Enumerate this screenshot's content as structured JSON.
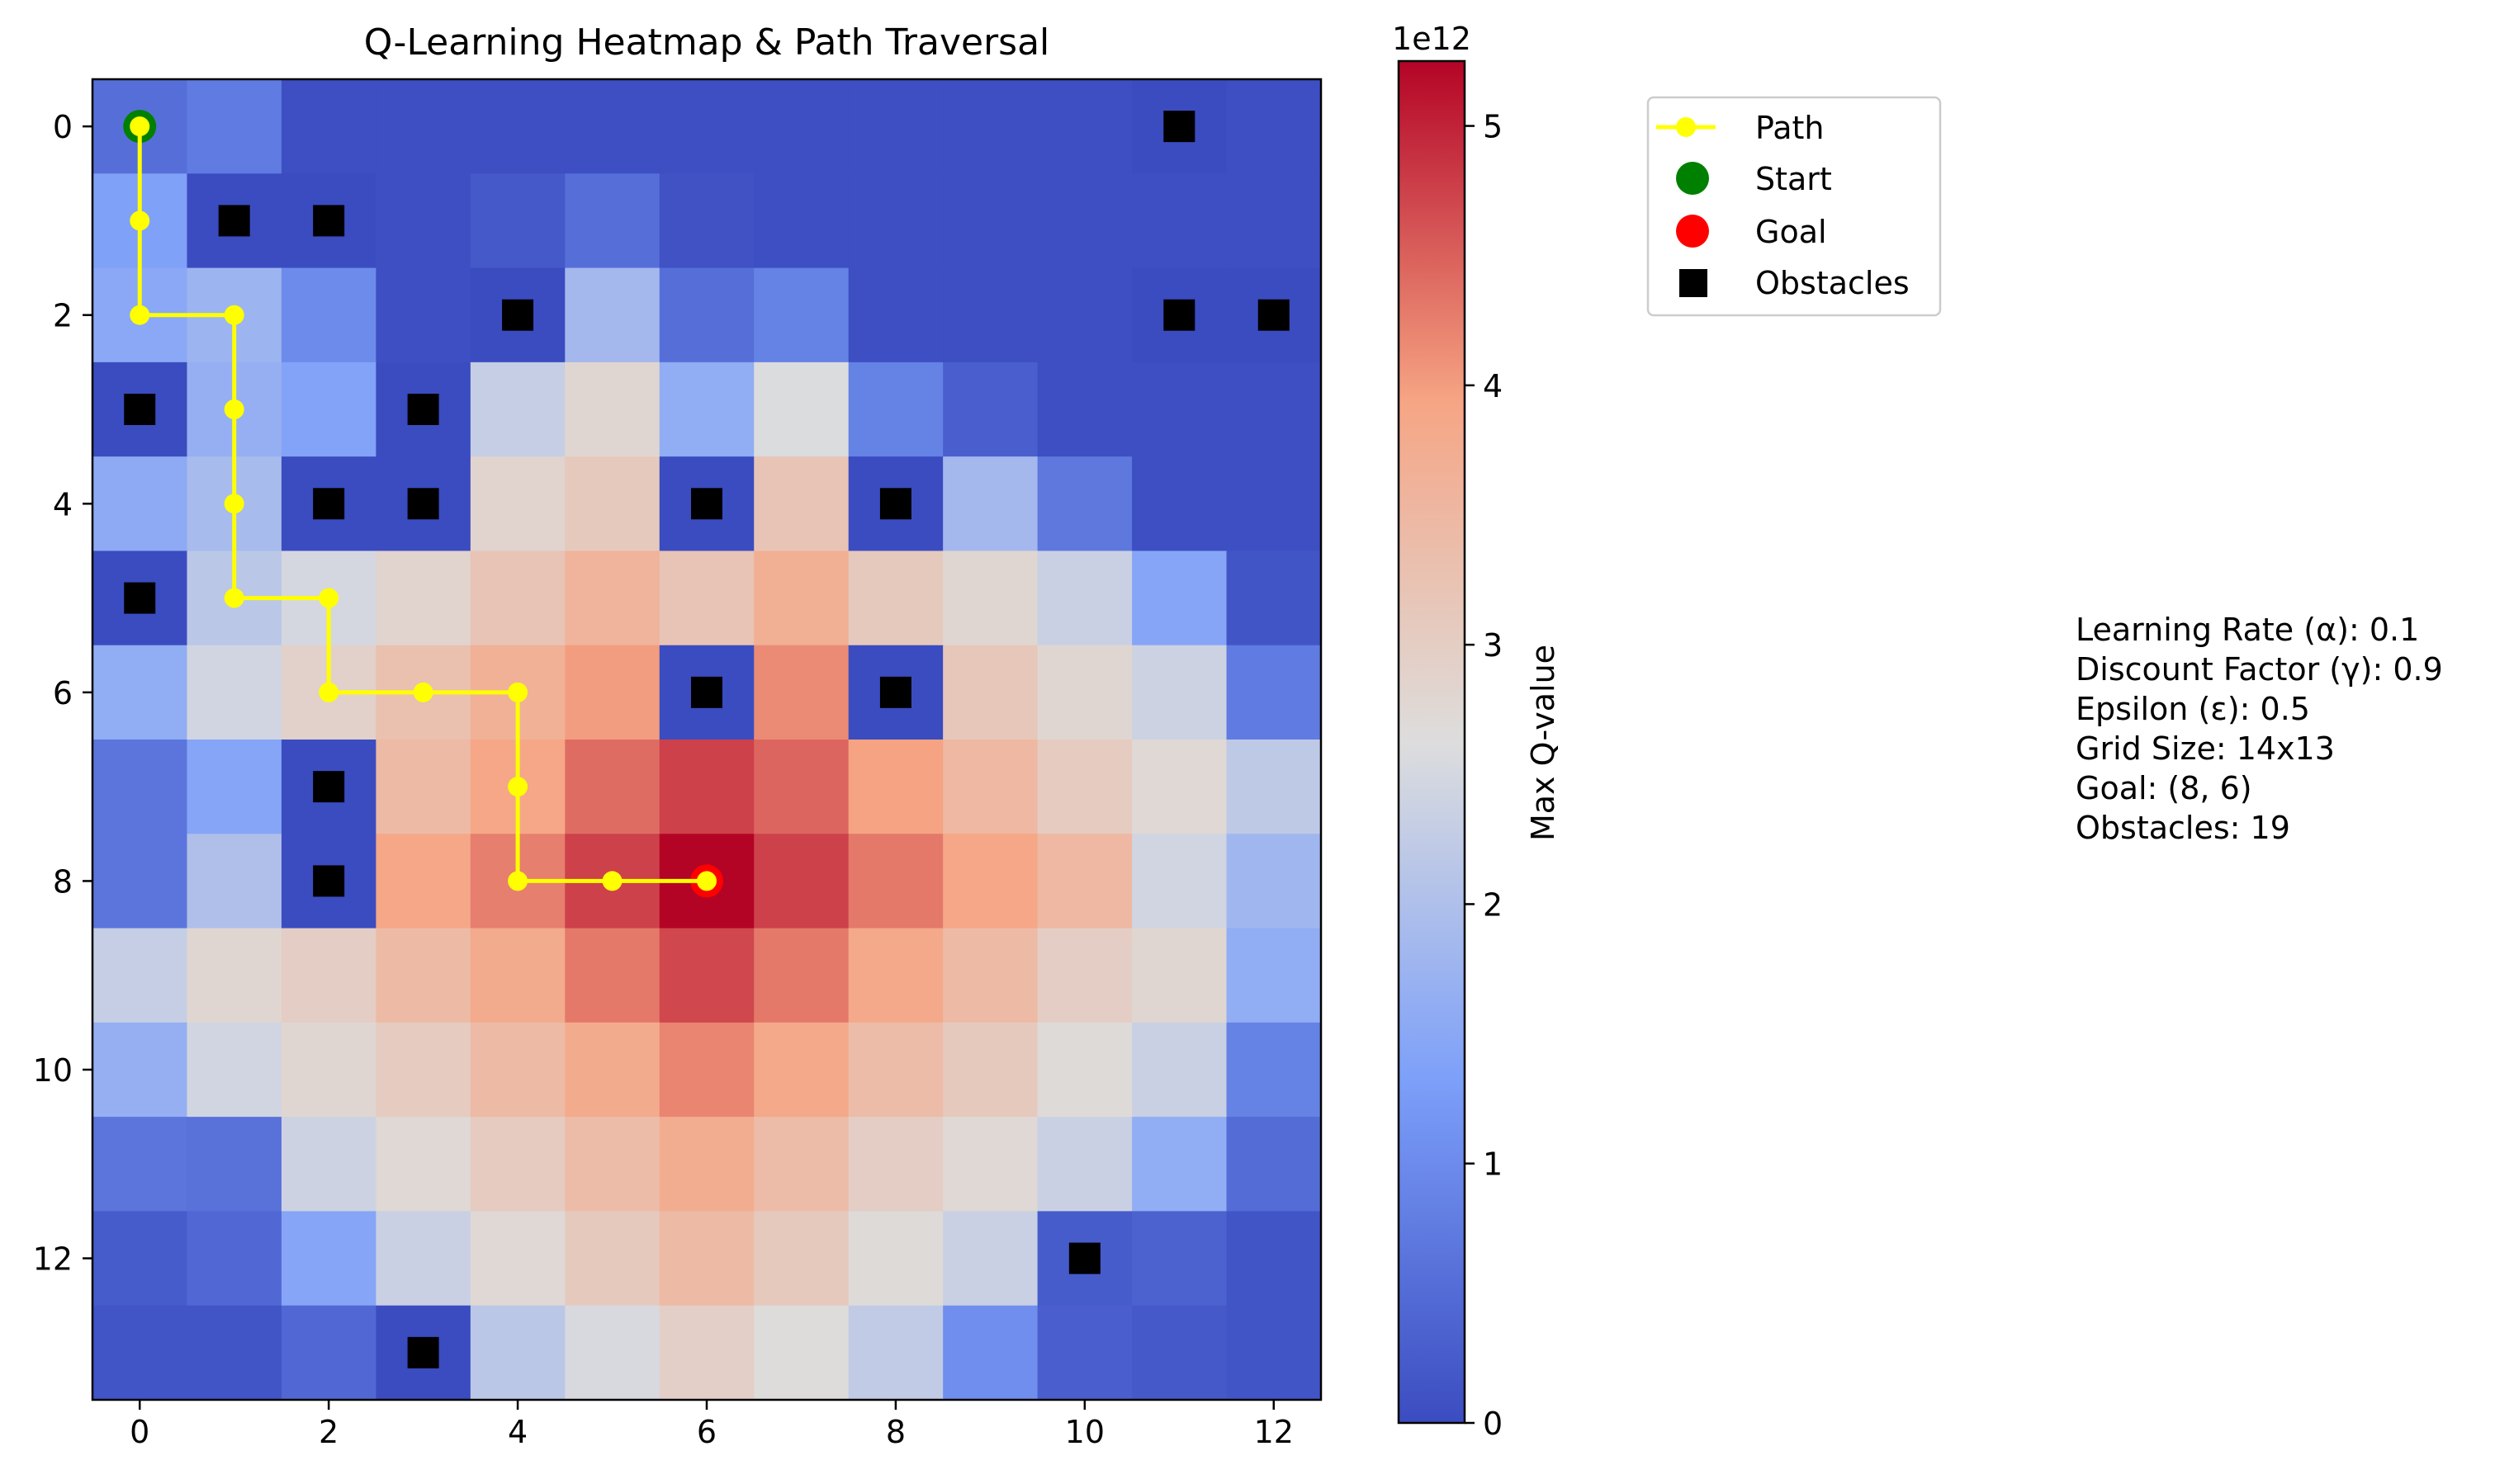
{
  "chart_data": {
    "type": "heatmap",
    "title": "Q-Learning Heatmap & Path Traversal",
    "xlabel": "",
    "ylabel": "",
    "rows": 14,
    "cols": 13,
    "x_ticks": [
      0,
      2,
      4,
      6,
      8,
      10,
      12
    ],
    "y_ticks": [
      0,
      2,
      4,
      6,
      8,
      10,
      12
    ],
    "colormap": "coolwarm",
    "colorbar": {
      "label": "Max Q-value",
      "multiplier_label": "1e12",
      "ticks": [
        0,
        1,
        2,
        3,
        4,
        5
      ],
      "range": [
        0,
        5.25
      ]
    },
    "values": [
      [
        0.55,
        0.75,
        0.05,
        0.05,
        0.05,
        0.05,
        0.05,
        0.05,
        0.05,
        0.05,
        0.05,
        0.0,
        0.05
      ],
      [
        1.35,
        0.0,
        0.0,
        0.05,
        0.2,
        0.55,
        0.1,
        0.05,
        0.05,
        0.05,
        0.05,
        0.05,
        0.05
      ],
      [
        1.5,
        1.75,
        1.0,
        0.05,
        0.0,
        1.85,
        0.55,
        0.85,
        0.05,
        0.05,
        0.05,
        0.0,
        0.0
      ],
      [
        0.0,
        1.65,
        1.4,
        0.0,
        2.3,
        2.8,
        1.6,
        2.6,
        0.85,
        0.3,
        0.05,
        0.05,
        0.05
      ],
      [
        1.55,
        1.9,
        0.0,
        0.0,
        2.85,
        3.1,
        0.0,
        3.2,
        0.0,
        1.85,
        0.7,
        0.05,
        0.05
      ],
      [
        0.0,
        2.15,
        2.5,
        2.85,
        3.2,
        3.6,
        3.2,
        3.7,
        3.1,
        2.8,
        2.35,
        1.45,
        0.15
      ],
      [
        1.6,
        2.45,
        2.9,
        3.3,
        3.65,
        4.0,
        0.0,
        4.15,
        0.0,
        3.15,
        2.8,
        2.4,
        0.75
      ],
      [
        0.65,
        1.45,
        0.0,
        3.45,
        3.9,
        4.4,
        4.75,
        4.45,
        3.95,
        3.5,
        3.05,
        2.75,
        2.2
      ],
      [
        0.65,
        2.0,
        0.0,
        3.9,
        4.25,
        4.75,
        5.25,
        4.75,
        4.3,
        3.9,
        3.5,
        2.45,
        1.8
      ],
      [
        2.3,
        2.8,
        3.0,
        3.45,
        3.8,
        4.3,
        4.7,
        4.3,
        3.85,
        3.45,
        3.0,
        2.8,
        1.6
      ],
      [
        1.65,
        2.45,
        2.8,
        3.05,
        3.45,
        3.8,
        4.2,
        3.85,
        3.4,
        3.1,
        2.7,
        2.35,
        0.85
      ],
      [
        0.65,
        0.6,
        2.4,
        2.75,
        3.05,
        3.4,
        3.75,
        3.4,
        3.0,
        2.75,
        2.35,
        1.6,
        0.5
      ],
      [
        0.25,
        0.45,
        1.45,
        2.35,
        2.75,
        3.1,
        3.45,
        3.1,
        2.7,
        2.35,
        0.25,
        0.35,
        0.15
      ],
      [
        0.15,
        0.15,
        0.45,
        0.0,
        2.15,
        2.55,
        2.95,
        2.65,
        2.25,
        1.05,
        0.3,
        0.2,
        0.15
      ]
    ],
    "obstacles": [
      [
        11,
        0
      ],
      [
        1,
        1
      ],
      [
        2,
        1
      ],
      [
        4,
        2
      ],
      [
        11,
        2
      ],
      [
        12,
        2
      ],
      [
        0,
        3
      ],
      [
        3,
        3
      ],
      [
        2,
        4
      ],
      [
        3,
        4
      ],
      [
        6,
        4
      ],
      [
        8,
        4
      ],
      [
        0,
        5
      ],
      [
        6,
        6
      ],
      [
        8,
        6
      ],
      [
        2,
        7
      ],
      [
        2,
        8
      ],
      [
        10,
        12
      ],
      [
        3,
        13
      ]
    ],
    "path": [
      [
        0,
        0
      ],
      [
        0,
        1
      ],
      [
        0,
        2
      ],
      [
        1,
        2
      ],
      [
        1,
        3
      ],
      [
        1,
        4
      ],
      [
        1,
        5
      ],
      [
        2,
        5
      ],
      [
        2,
        6
      ],
      [
        3,
        6
      ],
      [
        4,
        6
      ],
      [
        4,
        7
      ],
      [
        4,
        8
      ],
      [
        5,
        8
      ],
      [
        6,
        8
      ]
    ],
    "start": [
      0,
      0
    ],
    "goal": [
      6,
      8
    ],
    "legend": {
      "placement": "upper-left outside",
      "entries": [
        "Path",
        "Start",
        "Goal",
        "Obstacles"
      ]
    },
    "colors": {
      "path": "#ffff00",
      "start": "#008000",
      "goal": "#ff0000",
      "obstacle": "#000000"
    },
    "info_lines": [
      "Learning Rate (α): 0.1",
      "Discount Factor (γ): 0.9",
      "Epsilon (ε): 0.5",
      "Grid Size: 14x13",
      "Goal: (8, 6)",
      "Obstacles: 19"
    ]
  }
}
